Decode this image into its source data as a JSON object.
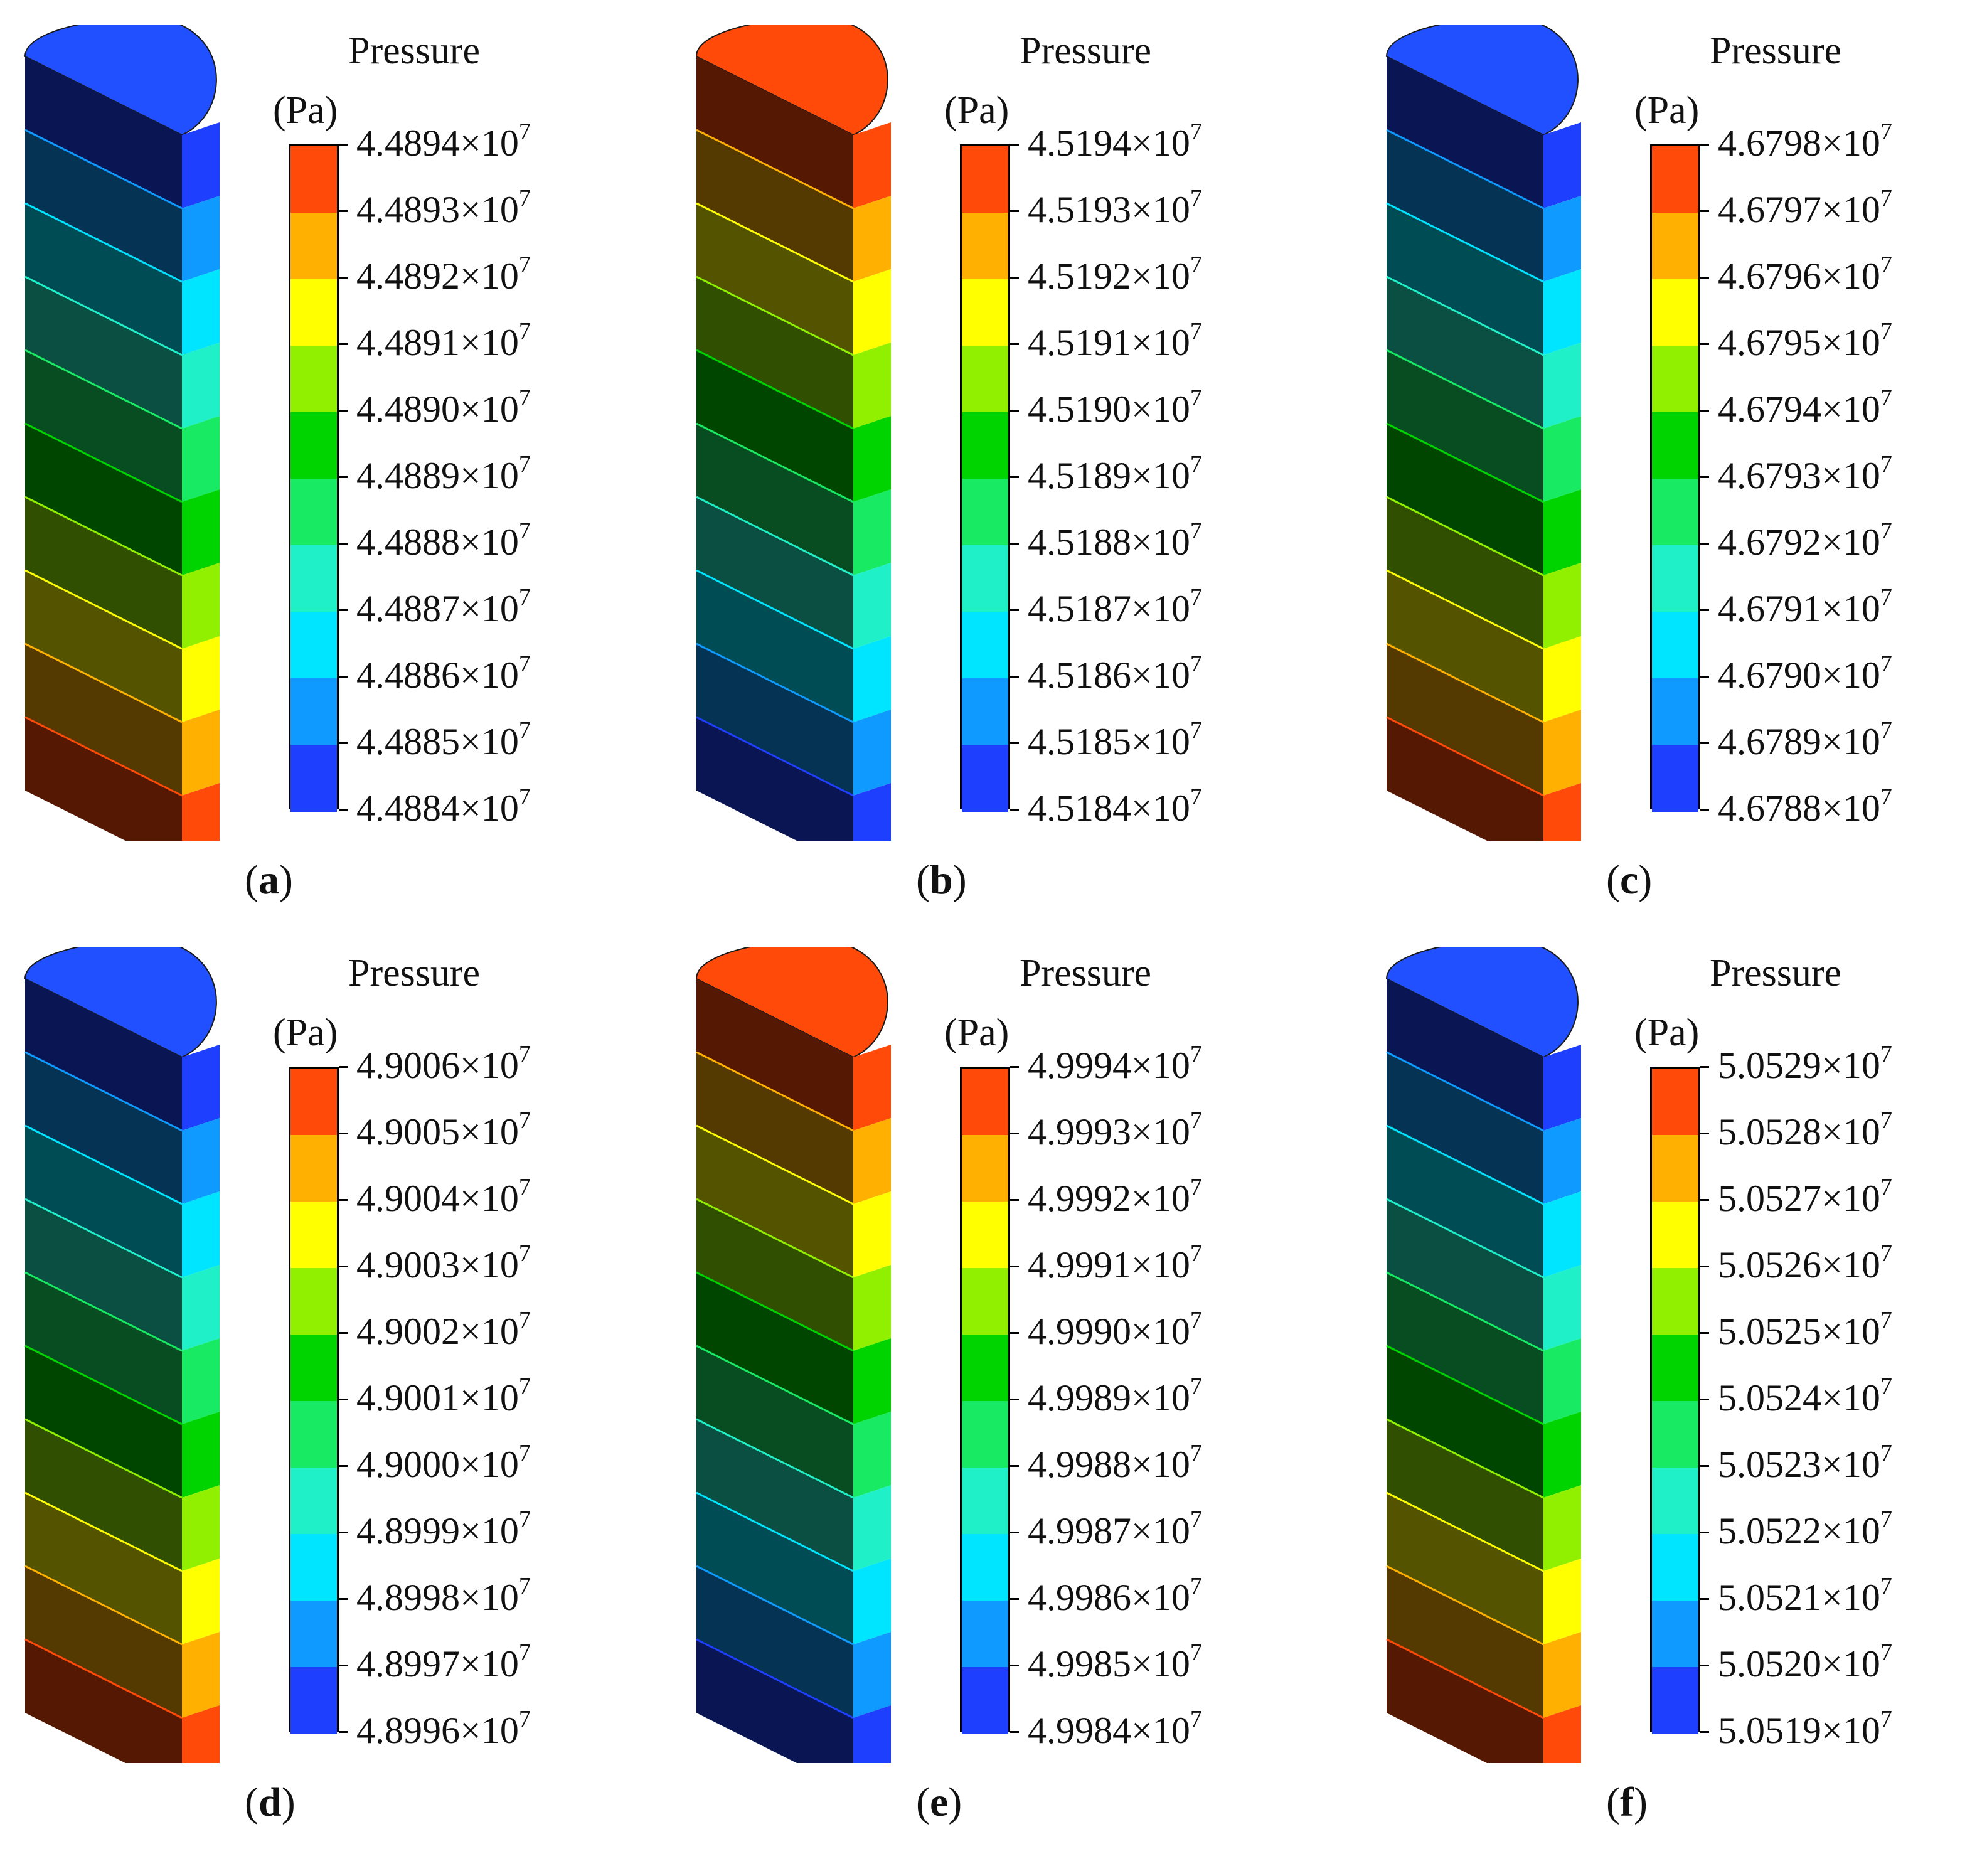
{
  "figure": {
    "legend_title": "Pressure",
    "legend_unit": "(Pa)",
    "exponent": "7",
    "times_sign": "×",
    "colormap": [
      "#1f3fff",
      "#0f9aff",
      "#00e5ff",
      "#1ff0c8",
      "#18ea64",
      "#00d400",
      "#90f000",
      "#ffff00",
      "#ffb000",
      "#ff4a0a"
    ],
    "panels": [
      {
        "id": "a",
        "label_open": "(",
        "label_letter": "a",
        "label_close": ")",
        "tick_labels": [
          "4.4894",
          "4.4893",
          "4.4892",
          "4.4891",
          "4.4890",
          "4.4889",
          "4.4888",
          "4.4887",
          "4.4886",
          "4.4885",
          "4.4884"
        ],
        "top_face_color": "#2050ff",
        "band_color_indices": [
          0,
          1,
          2,
          3,
          4,
          5,
          6,
          7,
          8,
          9
        ],
        "band_values": [
          4.48845,
          4.48855,
          4.48865,
          4.48875,
          4.48885,
          4.48895,
          4.48905,
          4.48915,
          4.48925,
          4.48935
        ]
      },
      {
        "id": "b",
        "label_open": "(",
        "label_letter": "b",
        "label_close": ")",
        "tick_labels": [
          "4.5194",
          "4.5193",
          "4.5192",
          "4.5191",
          "4.5190",
          "4.5189",
          "4.5188",
          "4.5187",
          "4.5186",
          "4.5185",
          "4.5184"
        ],
        "top_face_color": "#ff4a0a",
        "band_color_indices": [
          9,
          8,
          7,
          6,
          5,
          4,
          3,
          2,
          1,
          0
        ],
        "band_values": [
          4.51935,
          4.51925,
          4.51915,
          4.51905,
          4.51895,
          4.51885,
          4.51875,
          4.51865,
          4.51855,
          4.51845
        ]
      },
      {
        "id": "c",
        "label_open": "(",
        "label_letter": "c",
        "label_close": ")",
        "tick_labels": [
          "4.6798",
          "4.6797",
          "4.6796",
          "4.6795",
          "4.6794",
          "4.6793",
          "4.6792",
          "4.6791",
          "4.6790",
          "4.6789",
          "4.6788"
        ],
        "top_face_color": "#2050ff",
        "band_color_indices": [
          0,
          1,
          2,
          3,
          4,
          5,
          6,
          7,
          8,
          9
        ],
        "band_values": [
          4.67885,
          4.67895,
          4.67905,
          4.67915,
          4.67925,
          4.67935,
          4.67945,
          4.67955,
          4.67965,
          4.67975
        ]
      },
      {
        "id": "d",
        "label_open": "(",
        "label_letter": "d",
        "label_close": ")",
        "tick_labels": [
          "4.9006",
          "4.9005",
          "4.9004",
          "4.9003",
          "4.9002",
          "4.9001",
          "4.9000",
          "4.8999",
          "4.8998",
          "4.8997",
          "4.8996"
        ],
        "top_face_color": "#2050ff",
        "band_color_indices": [
          0,
          1,
          2,
          3,
          4,
          5,
          6,
          7,
          8,
          9
        ],
        "band_values": [
          4.89965,
          4.89975,
          4.89985,
          4.89995,
          4.90005,
          4.90015,
          4.90025,
          4.90035,
          4.90045,
          4.90055
        ]
      },
      {
        "id": "e",
        "label_open": "(",
        "label_letter": "e",
        "label_close": ")",
        "tick_labels": [
          "4.9994",
          "4.9993",
          "4.9992",
          "4.9991",
          "4.9990",
          "4.9989",
          "4.9988",
          "4.9987",
          "4.9986",
          "4.9985",
          "4.9984"
        ],
        "top_face_color": "#ff4a0a",
        "band_color_indices": [
          9,
          8,
          7,
          6,
          5,
          4,
          3,
          2,
          1,
          0
        ],
        "band_values": [
          4.99935,
          4.99925,
          4.99915,
          4.99905,
          4.99895,
          4.99885,
          4.99875,
          4.99865,
          4.99855,
          4.99845
        ]
      },
      {
        "id": "f",
        "label_open": "(",
        "label_letter": "f",
        "label_close": ")",
        "tick_labels": [
          "5.0529",
          "5.0528",
          "5.0527",
          "5.0526",
          "5.0525",
          "5.0524",
          "5.0523",
          "5.0522",
          "5.0521",
          "5.0520",
          "5.0519"
        ],
        "top_face_color": "#2050ff",
        "band_color_indices": [
          0,
          1,
          2,
          3,
          4,
          5,
          6,
          7,
          8,
          9
        ],
        "band_values": [
          5.05195,
          5.05205,
          5.05215,
          5.05225,
          5.05235,
          5.05245,
          5.05255,
          5.05265,
          5.05275,
          5.05285
        ]
      }
    ]
  }
}
